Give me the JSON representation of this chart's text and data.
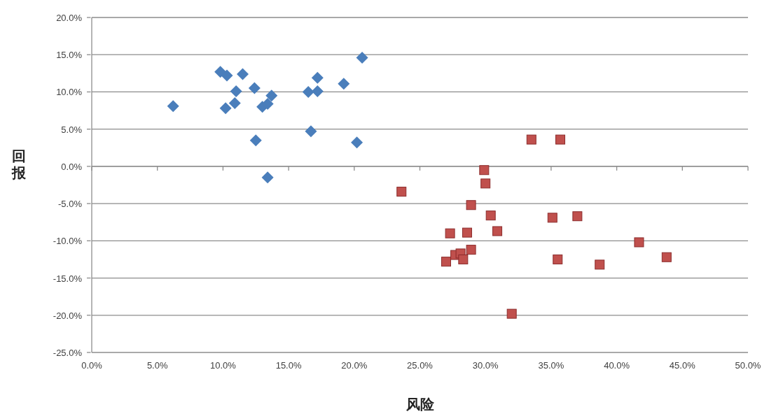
{
  "chart_data": {
    "type": "scatter",
    "xlabel": "风险",
    "ylabel": "回报",
    "grid": "y",
    "xlim": [
      0,
      50
    ],
    "ylim": [
      -25,
      20
    ],
    "xticks": [
      {
        "value": 0,
        "label": "0.0%"
      },
      {
        "value": 5,
        "label": "5.0%"
      },
      {
        "value": 10,
        "label": "10.0%"
      },
      {
        "value": 15,
        "label": "15.0%"
      },
      {
        "value": 20,
        "label": "20.0%"
      },
      {
        "value": 25,
        "label": "25.0%"
      },
      {
        "value": 30,
        "label": "30.0%"
      },
      {
        "value": 35,
        "label": "35.0%"
      },
      {
        "value": 40,
        "label": "40.0%"
      },
      {
        "value": 45,
        "label": "45.0%"
      },
      {
        "value": 50,
        "label": "50.0%"
      }
    ],
    "yticks": [
      {
        "value": -25,
        "label": "-25.0%"
      },
      {
        "value": -20,
        "label": "-20.0%"
      },
      {
        "value": -15,
        "label": "-15.0%"
      },
      {
        "value": -10,
        "label": "-10.0%"
      },
      {
        "value": -5,
        "label": "-5.0%"
      },
      {
        "value": 0,
        "label": "0.0%"
      },
      {
        "value": 5,
        "label": "5.0%"
      },
      {
        "value": 10,
        "label": "10.0%"
      },
      {
        "value": 15,
        "label": "15.0%"
      },
      {
        "value": 20,
        "label": "20.0%"
      }
    ],
    "series": [
      {
        "color": "#4a7ebb",
        "marker": "diamond",
        "x": [
          6.2,
          9.8,
          10.3,
          11.5,
          11.0,
          12.4,
          10.2,
          10.9,
          13.0,
          13.4,
          13.7,
          16.5,
          17.2,
          17.2,
          19.2,
          20.6,
          16.7,
          20.2,
          12.5,
          13.4
        ],
        "values": [
          8.1,
          12.7,
          12.2,
          12.4,
          10.1,
          10.5,
          7.8,
          8.5,
          8.0,
          8.4,
          9.5,
          10.0,
          10.1,
          11.9,
          11.1,
          14.6,
          4.7,
          3.2,
          3.5,
          -1.5
        ]
      },
      {
        "color": "#c0504d",
        "marker": "square",
        "x": [
          33.5,
          35.7,
          29.9,
          30.0,
          23.6,
          28.9,
          30.4,
          35.1,
          37.0,
          27.3,
          28.6,
          30.9,
          41.7,
          28.9,
          27.7,
          28.1,
          28.3,
          27.0,
          35.5,
          38.7,
          43.8,
          32.0
        ],
        "values": [
          3.6,
          3.6,
          -0.5,
          -2.3,
          -3.4,
          -5.2,
          -6.6,
          -6.9,
          -6.7,
          -9.0,
          -8.9,
          -8.7,
          -10.2,
          -11.2,
          -11.9,
          -11.7,
          -12.5,
          -12.8,
          -12.5,
          -13.2,
          -12.2,
          -19.8
        ]
      }
    ]
  }
}
